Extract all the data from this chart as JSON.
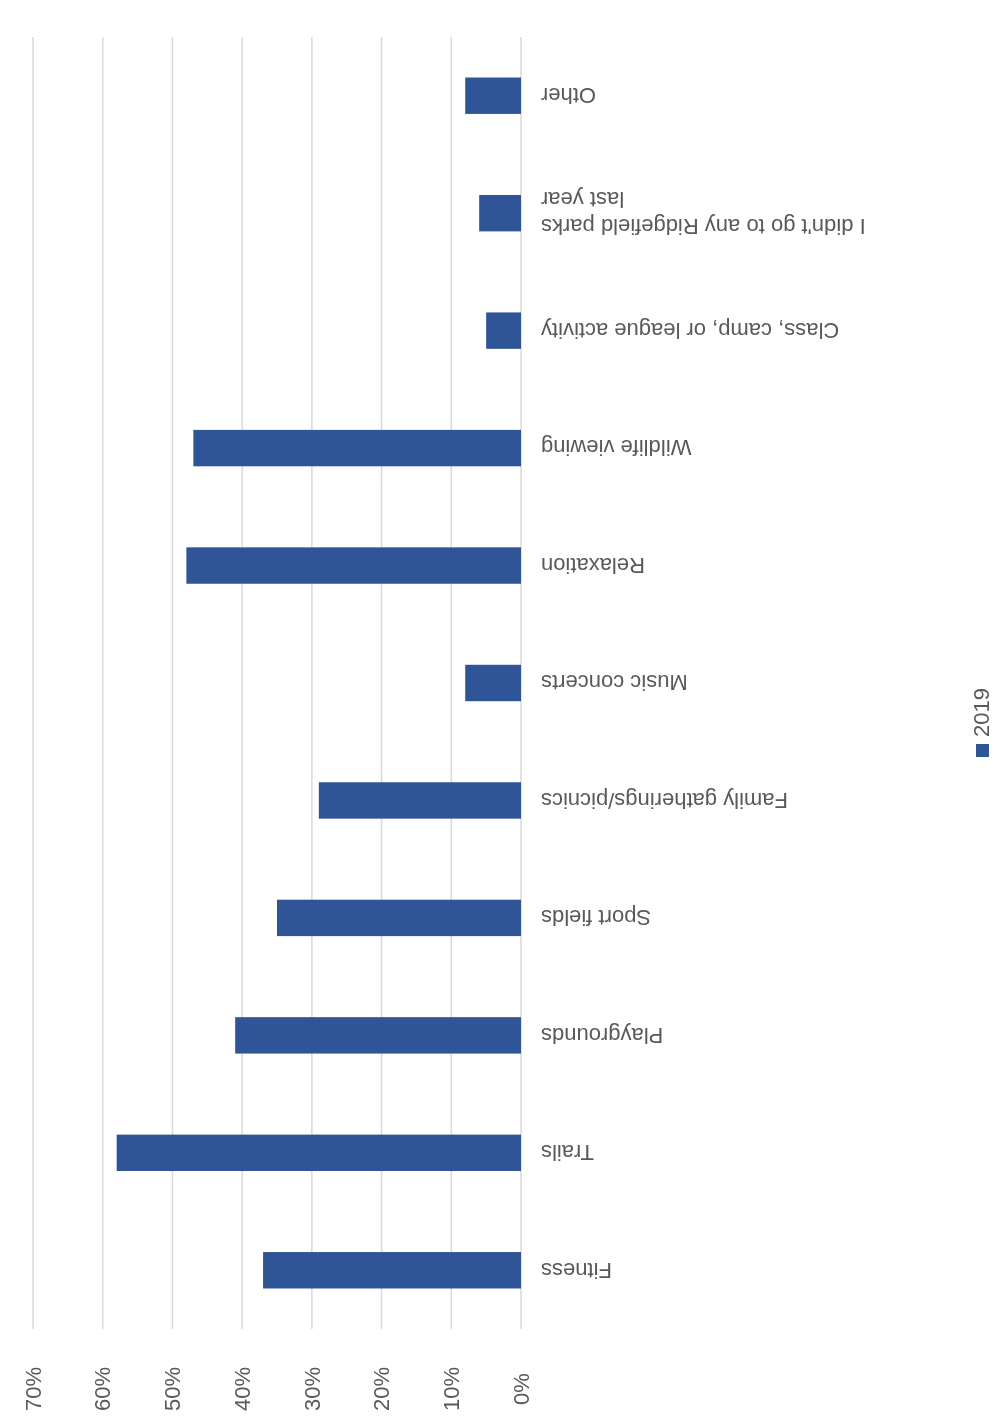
{
  "chart_data": {
    "type": "bar",
    "orientation": "horizontal",
    "categories": [
      "Other",
      "I didn't go to any Ridgefield parks last year",
      "Class, camp, or league activity",
      "Wildlife viewing",
      "Relaxation",
      "Music concerts",
      "Family gatherings/picnics",
      "Sport fields",
      "Playgrounds",
      "Trails",
      "Fitness"
    ],
    "series": [
      {
        "name": "2019",
        "color": "#2f5597",
        "values": [
          8,
          6,
          5,
          47,
          48,
          8,
          29,
          35,
          41,
          58,
          37
        ]
      }
    ],
    "xlim": [
      70,
      0
    ],
    "xticks": [
      {
        "value": 70,
        "label": "70%"
      },
      {
        "value": 60,
        "label": "60%"
      },
      {
        "value": 50,
        "label": "50%"
      },
      {
        "value": 40,
        "label": "40%"
      },
      {
        "value": 30,
        "label": "30%"
      },
      {
        "value": 20,
        "label": "20%"
      },
      {
        "value": 10,
        "label": "10%"
      },
      {
        "value": 0,
        "label": "0%"
      }
    ],
    "grid": "x",
    "legend": "right"
  }
}
